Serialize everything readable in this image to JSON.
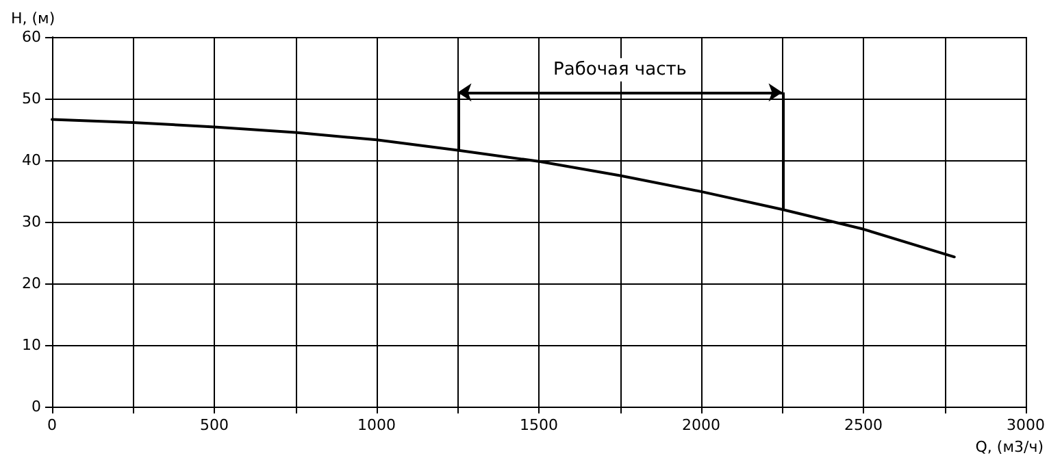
{
  "chart_data": {
    "type": "line",
    "xlabel": "Q, (м3/ч)",
    "ylabel": "H, (м)",
    "x": [
      0,
      250,
      500,
      750,
      1000,
      1250,
      1500,
      1750,
      2000,
      2250,
      2500,
      2780
    ],
    "series": [
      {
        "color": "#000000",
        "values": [
          46.6,
          46.1,
          45.4,
          44.5,
          43.3,
          41.6,
          39.8,
          37.5,
          34.9,
          32.0,
          28.8,
          24.3
        ]
      }
    ],
    "xlim": [
      0,
      3000
    ],
    "ylim": [
      0,
      60
    ],
    "xticks": [
      0,
      {
        "value": 250,
        "label": null
      },
      500,
      {
        "value": 750,
        "label": null
      },
      1000,
      {
        "value": 1250,
        "label": null
      },
      1500,
      {
        "value": 1750,
        "label": null
      },
      2000,
      {
        "value": 2250,
        "label": null
      },
      2500,
      {
        "value": 2750,
        "label": null
      },
      3000
    ],
    "yticks": [
      0,
      10,
      20,
      30,
      40,
      50,
      60
    ],
    "ref_lines": [
      {
        "axis": "x",
        "value": 1250
      },
      {
        "axis": "x",
        "value": 2250
      }
    ],
    "annotations": [
      "Рабочая часть"
    ],
    "grid": true,
    "marker": "none",
    "line_style": "solid"
  }
}
